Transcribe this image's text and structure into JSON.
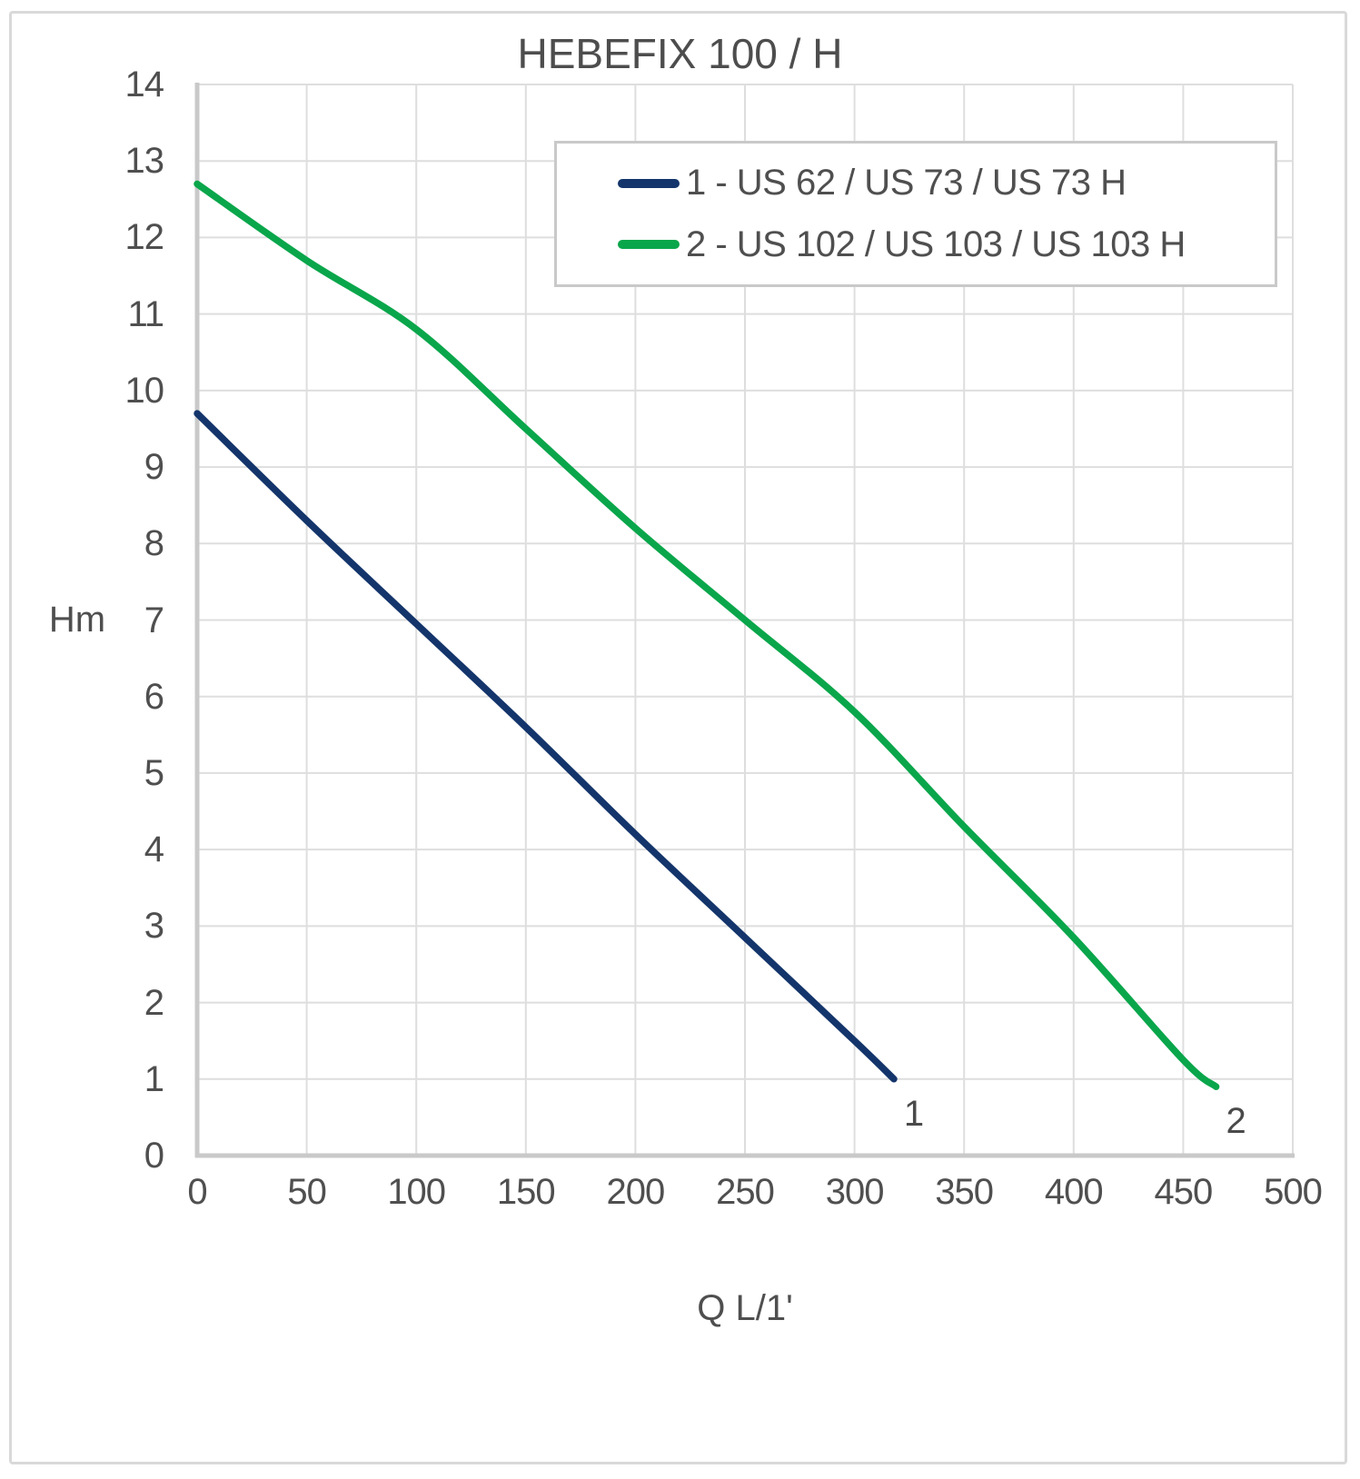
{
  "chart_data": {
    "type": "line",
    "title": "HEBEFIX 100 / H",
    "xlabel": "Q L/1'",
    "ylabel": "Hm",
    "xlim": [
      0,
      500
    ],
    "ylim": [
      0,
      14
    ],
    "x_ticks": [
      0,
      50,
      100,
      150,
      200,
      250,
      300,
      350,
      400,
      450,
      500
    ],
    "y_ticks": [
      0,
      1,
      2,
      3,
      4,
      5,
      6,
      7,
      8,
      9,
      10,
      11,
      12,
      13,
      14
    ],
    "grid": true,
    "legend_position": "inside-top-center",
    "series": [
      {
        "name": "1 - US 62 / US 73 / US 73 H",
        "end_label": "1",
        "color": "#14356b",
        "points": [
          [
            0,
            9.7
          ],
          [
            50,
            8.3
          ],
          [
            100,
            6.95
          ],
          [
            150,
            5.6
          ],
          [
            200,
            4.2
          ],
          [
            250,
            2.85
          ],
          [
            300,
            1.5
          ],
          [
            318,
            1.0
          ]
        ]
      },
      {
        "name": "2 - US 102 / US 103 / US 103 H",
        "end_label": "2",
        "color": "#0aa64b",
        "points": [
          [
            0,
            12.7
          ],
          [
            50,
            11.7
          ],
          [
            100,
            10.8
          ],
          [
            150,
            9.5
          ],
          [
            200,
            8.2
          ],
          [
            250,
            7.0
          ],
          [
            300,
            5.8
          ],
          [
            350,
            4.3
          ],
          [
            400,
            2.85
          ],
          [
            450,
            1.25
          ],
          [
            465,
            0.9
          ]
        ]
      }
    ]
  },
  "colors": {
    "grid": "#dedede",
    "axis": "#c9c9c9",
    "text": "#4f4f4f"
  }
}
